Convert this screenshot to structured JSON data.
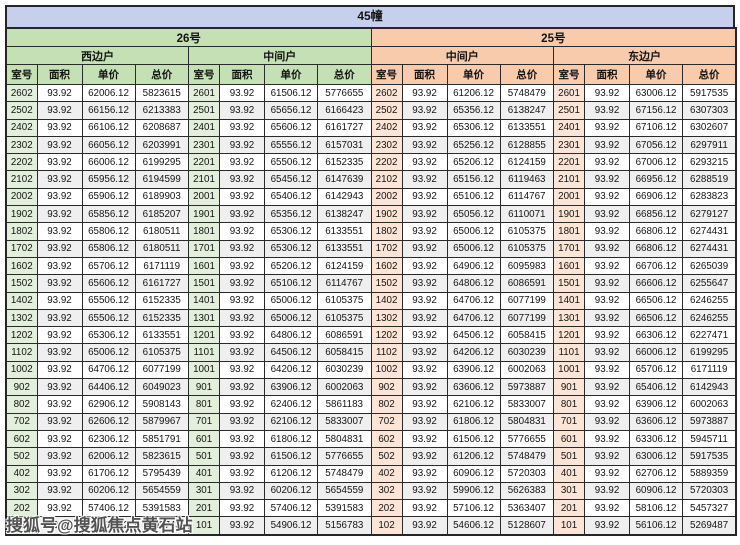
{
  "title": "45幢",
  "watermark": "搜狐号@搜狐焦点黄石站",
  "columns": [
    "室号",
    "面积",
    "单价",
    "总价"
  ],
  "buildings": [
    {
      "name": "26号",
      "units": [
        {
          "name": "西边户",
          "rows": [
            [
              "2602",
              "93.92",
              "62006.12",
              "5823615"
            ],
            [
              "2502",
              "93.92",
              "66156.12",
              "6213383"
            ],
            [
              "2402",
              "93.92",
              "66106.12",
              "6208687"
            ],
            [
              "2302",
              "93.92",
              "66056.12",
              "6203991"
            ],
            [
              "2202",
              "93.92",
              "66006.12",
              "6199295"
            ],
            [
              "2102",
              "93.92",
              "65956.12",
              "6194599"
            ],
            [
              "2002",
              "93.92",
              "65906.12",
              "6189903"
            ],
            [
              "1902",
              "93.92",
              "65856.12",
              "6185207"
            ],
            [
              "1802",
              "93.92",
              "65806.12",
              "6180511"
            ],
            [
              "1702",
              "93.92",
              "65806.12",
              "6180511"
            ],
            [
              "1602",
              "93.92",
              "65706.12",
              "6171119"
            ],
            [
              "1502",
              "93.92",
              "65606.12",
              "6161727"
            ],
            [
              "1402",
              "93.92",
              "65506.12",
              "6152335"
            ],
            [
              "1302",
              "93.92",
              "65506.12",
              "6152335"
            ],
            [
              "1202",
              "93.92",
              "65306.12",
              "6133551"
            ],
            [
              "1102",
              "93.92",
              "65006.12",
              "6105375"
            ],
            [
              "1002",
              "93.92",
              "64706.12",
              "6077199"
            ],
            [
              "902",
              "93.92",
              "64406.12",
              "6049023"
            ],
            [
              "802",
              "93.92",
              "62906.12",
              "5908143"
            ],
            [
              "702",
              "93.92",
              "62606.12",
              "5879967"
            ],
            [
              "602",
              "93.92",
              "62306.12",
              "5851791"
            ],
            [
              "502",
              "93.92",
              "62006.12",
              "5823615"
            ],
            [
              "402",
              "93.92",
              "61706.12",
              "5795439"
            ],
            [
              "302",
              "93.92",
              "60206.12",
              "5654559"
            ],
            [
              "202",
              "93.92",
              "57406.12",
              "5391583"
            ],
            [
              "102",
              "93.92",
              "55406.12",
              "5203743"
            ]
          ]
        },
        {
          "name": "中间户",
          "rows": [
            [
              "2601",
              "93.92",
              "61506.12",
              "5776655"
            ],
            [
              "2501",
              "93.92",
              "65656.12",
              "6166423"
            ],
            [
              "2401",
              "93.92",
              "65606.12",
              "6161727"
            ],
            [
              "2301",
              "93.92",
              "65556.12",
              "6157031"
            ],
            [
              "2201",
              "93.92",
              "65506.12",
              "6152335"
            ],
            [
              "2101",
              "93.92",
              "65456.12",
              "6147639"
            ],
            [
              "2001",
              "93.92",
              "65406.12",
              "6142943"
            ],
            [
              "1901",
              "93.92",
              "65356.12",
              "6138247"
            ],
            [
              "1801",
              "93.92",
              "65306.12",
              "6133551"
            ],
            [
              "1701",
              "93.92",
              "65306.12",
              "6133551"
            ],
            [
              "1601",
              "93.92",
              "65206.12",
              "6124159"
            ],
            [
              "1501",
              "93.92",
              "65106.12",
              "6114767"
            ],
            [
              "1401",
              "93.92",
              "65006.12",
              "6105375"
            ],
            [
              "1301",
              "93.92",
              "65006.12",
              "6105375"
            ],
            [
              "1201",
              "93.92",
              "64806.12",
              "6086591"
            ],
            [
              "1101",
              "93.92",
              "64506.12",
              "6058415"
            ],
            [
              "1001",
              "93.92",
              "64206.12",
              "6030239"
            ],
            [
              "901",
              "93.92",
              "63906.12",
              "6002063"
            ],
            [
              "801",
              "93.92",
              "62406.12",
              "5861183"
            ],
            [
              "701",
              "93.92",
              "62106.12",
              "5833007"
            ],
            [
              "601",
              "93.92",
              "61806.12",
              "5804831"
            ],
            [
              "501",
              "93.92",
              "61506.12",
              "5776655"
            ],
            [
              "401",
              "93.92",
              "61206.12",
              "5748479"
            ],
            [
              "301",
              "93.92",
              "60206.12",
              "5654559"
            ],
            [
              "201",
              "93.92",
              "57406.12",
              "5391583"
            ],
            [
              "101",
              "93.92",
              "54906.12",
              "5156783"
            ]
          ]
        }
      ]
    },
    {
      "name": "25号",
      "units": [
        {
          "name": "中间户",
          "rows": [
            [
              "2602",
              "93.92",
              "61206.12",
              "5748479"
            ],
            [
              "2502",
              "93.92",
              "65356.12",
              "6138247"
            ],
            [
              "2402",
              "93.92",
              "65306.12",
              "6133551"
            ],
            [
              "2302",
              "93.92",
              "65256.12",
              "6128855"
            ],
            [
              "2202",
              "93.92",
              "65206.12",
              "6124159"
            ],
            [
              "2102",
              "93.92",
              "65156.12",
              "6119463"
            ],
            [
              "2002",
              "93.92",
              "65106.12",
              "6114767"
            ],
            [
              "1902",
              "93.92",
              "65056.12",
              "6110071"
            ],
            [
              "1802",
              "93.92",
              "65006.12",
              "6105375"
            ],
            [
              "1702",
              "93.92",
              "65006.12",
              "6105375"
            ],
            [
              "1602",
              "93.92",
              "64906.12",
              "6095983"
            ],
            [
              "1502",
              "93.92",
              "64806.12",
              "6086591"
            ],
            [
              "1402",
              "93.92",
              "64706.12",
              "6077199"
            ],
            [
              "1302",
              "93.92",
              "64706.12",
              "6077199"
            ],
            [
              "1202",
              "93.92",
              "64506.12",
              "6058415"
            ],
            [
              "1102",
              "93.92",
              "64206.12",
              "6030239"
            ],
            [
              "1002",
              "93.92",
              "63906.12",
              "6002063"
            ],
            [
              "902",
              "93.92",
              "63606.12",
              "5973887"
            ],
            [
              "802",
              "93.92",
              "62106.12",
              "5833007"
            ],
            [
              "702",
              "93.92",
              "61806.12",
              "5804831"
            ],
            [
              "602",
              "93.92",
              "61506.12",
              "5776655"
            ],
            [
              "502",
              "93.92",
              "61206.12",
              "5748479"
            ],
            [
              "402",
              "93.92",
              "60906.12",
              "5720303"
            ],
            [
              "302",
              "93.92",
              "59906.12",
              "5626383"
            ],
            [
              "202",
              "93.92",
              "57106.12",
              "5363407"
            ],
            [
              "102",
              "93.92",
              "54606.12",
              "5128607"
            ]
          ]
        },
        {
          "name": "东边户",
          "rows": [
            [
              "2601",
              "93.92",
              "63006.12",
              "5917535"
            ],
            [
              "2501",
              "93.92",
              "67156.12",
              "6307303"
            ],
            [
              "2401",
              "93.92",
              "67106.12",
              "6302607"
            ],
            [
              "2301",
              "93.92",
              "67056.12",
              "6297911"
            ],
            [
              "2201",
              "93.92",
              "67006.12",
              "6293215"
            ],
            [
              "2101",
              "93.92",
              "66956.12",
              "6288519"
            ],
            [
              "2001",
              "93.92",
              "66906.12",
              "6283823"
            ],
            [
              "1901",
              "93.92",
              "66856.12",
              "6279127"
            ],
            [
              "1801",
              "93.92",
              "66806.12",
              "6274431"
            ],
            [
              "1701",
              "93.92",
              "66806.12",
              "6274431"
            ],
            [
              "1601",
              "93.92",
              "66706.12",
              "6265039"
            ],
            [
              "1501",
              "93.92",
              "66606.12",
              "6255647"
            ],
            [
              "1401",
              "93.92",
              "66506.12",
              "6246255"
            ],
            [
              "1301",
              "93.92",
              "66506.12",
              "6246255"
            ],
            [
              "1201",
              "93.92",
              "66306.12",
              "6227471"
            ],
            [
              "1101",
              "93.92",
              "66006.12",
              "6199295"
            ],
            [
              "1001",
              "93.92",
              "65706.12",
              "6171119"
            ],
            [
              "901",
              "93.92",
              "65406.12",
              "6142943"
            ],
            [
              "801",
              "93.92",
              "63906.12",
              "6002063"
            ],
            [
              "701",
              "93.92",
              "63606.12",
              "5973887"
            ],
            [
              "601",
              "93.92",
              "63306.12",
              "5945711"
            ],
            [
              "501",
              "93.92",
              "63006.12",
              "5917535"
            ],
            [
              "401",
              "93.92",
              "62706.12",
              "5889359"
            ],
            [
              "301",
              "93.92",
              "60906.12",
              "5720303"
            ],
            [
              "201",
              "93.92",
              "58106.12",
              "5457327"
            ],
            [
              "101",
              "93.92",
              "56106.12",
              "5269487"
            ]
          ]
        }
      ]
    }
  ]
}
